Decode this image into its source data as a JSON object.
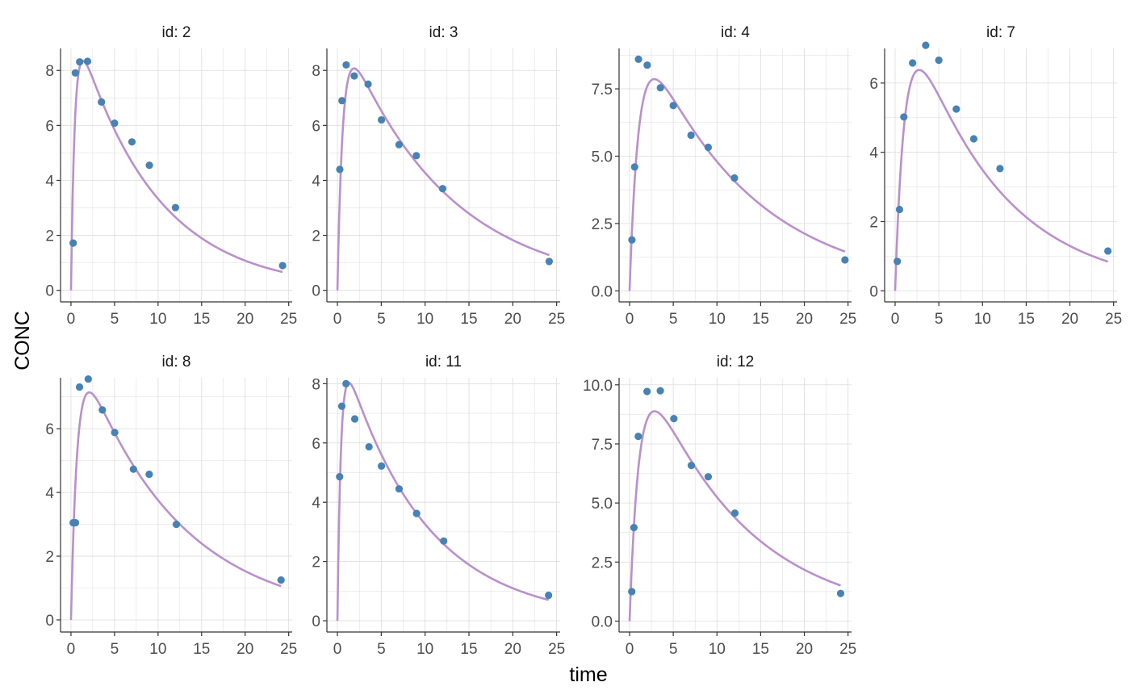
{
  "chart_data": {
    "type": "scatter",
    "xlabel": "time",
    "ylabel": "CONC",
    "grid": true,
    "colors": {
      "points": "#4682B4",
      "fit": "#BB8FCE",
      "grid": "#DCDCDC",
      "axis": "#333333"
    },
    "xlim": [
      -1.2,
      25.4
    ],
    "xticks": [
      0,
      5,
      10,
      15,
      20,
      25
    ],
    "panels": [
      {
        "strip": "id: 2",
        "ylim": [
          -0.42,
          8.8
        ],
        "yticks": [
          {
            "v": 0,
            "label": "0"
          },
          {
            "v": 2,
            "label": "2"
          },
          {
            "v": 4,
            "label": "4"
          },
          {
            "v": 6,
            "label": "6"
          },
          {
            "v": 8,
            "label": "8"
          }
        ],
        "points": [
          [
            0.25,
            1.72
          ],
          [
            0.5,
            7.91
          ],
          [
            1.0,
            8.31
          ],
          [
            1.9,
            8.33
          ],
          [
            3.5,
            6.85
          ],
          [
            5.0,
            6.08
          ],
          [
            7.0,
            5.4
          ],
          [
            9.0,
            4.55
          ],
          [
            12.0,
            3.01
          ],
          [
            24.3,
            0.9
          ]
        ],
        "model": {
          "ka": 2.3,
          "ke": 0.1125,
          "A": 10.25
        }
      },
      {
        "strip": "id: 3",
        "ylim": [
          -0.42,
          8.8
        ],
        "yticks": [
          {
            "v": 0,
            "label": "0"
          },
          {
            "v": 2,
            "label": "2"
          },
          {
            "v": 4,
            "label": "4"
          },
          {
            "v": 6,
            "label": "6"
          },
          {
            "v": 8,
            "label": "8"
          }
        ],
        "points": [
          [
            0.27,
            4.4
          ],
          [
            0.52,
            6.9
          ],
          [
            1.0,
            8.2
          ],
          [
            1.92,
            7.8
          ],
          [
            3.5,
            7.5
          ],
          [
            5.02,
            6.2
          ],
          [
            7.03,
            5.3
          ],
          [
            9.0,
            4.9
          ],
          [
            12.0,
            3.7
          ],
          [
            24.15,
            1.05
          ]
        ],
        "model": {
          "ka": 1.65,
          "ke": 0.085,
          "A": 10.0
        }
      },
      {
        "strip": "id: 4",
        "ylim": [
          -0.41,
          9.0
        ],
        "yticks": [
          {
            "v": 0,
            "label": "0.0"
          },
          {
            "v": 2.5,
            "label": "2.5"
          },
          {
            "v": 5,
            "label": "5.0"
          },
          {
            "v": 7.5,
            "label": "7.5"
          }
        ],
        "points": [
          [
            0.27,
            1.89
          ],
          [
            0.58,
            4.6
          ],
          [
            1.02,
            8.6
          ],
          [
            2.02,
            8.38
          ],
          [
            3.53,
            7.54
          ],
          [
            5.0,
            6.88
          ],
          [
            7.03,
            5.78
          ],
          [
            9.0,
            5.33
          ],
          [
            12.0,
            4.19
          ],
          [
            24.65,
            1.15
          ]
        ],
        "model": {
          "ka": 0.95,
          "ke": 0.0813,
          "A": 10.82
        }
      },
      {
        "strip": "id: 7",
        "ylim": [
          -0.32,
          7.0
        ],
        "yticks": [
          {
            "v": 0,
            "label": "0"
          },
          {
            "v": 2,
            "label": "2"
          },
          {
            "v": 4,
            "label": "4"
          },
          {
            "v": 6,
            "label": "6"
          }
        ],
        "points": [
          [
            0.25,
            0.85
          ],
          [
            0.5,
            2.35
          ],
          [
            1.0,
            5.02
          ],
          [
            2.0,
            6.58
          ],
          [
            3.5,
            7.09
          ],
          [
            5.0,
            6.66
          ],
          [
            7.0,
            5.25
          ],
          [
            9.0,
            4.39
          ],
          [
            12.0,
            3.53
          ],
          [
            24.35,
            1.15
          ]
        ],
        "model": {
          "ka": 0.9,
          "ke": 0.0992,
          "A": 9.42
        }
      },
      {
        "strip": "id: 8",
        "ylim": [
          -0.38,
          7.6
        ],
        "yticks": [
          {
            "v": 0,
            "label": "0"
          },
          {
            "v": 2,
            "label": "2"
          },
          {
            "v": 4,
            "label": "4"
          },
          {
            "v": 6,
            "label": "6"
          }
        ],
        "points": [
          [
            0.25,
            3.05
          ],
          [
            0.52,
            3.05
          ],
          [
            0.98,
            7.31
          ],
          [
            1.98,
            7.56
          ],
          [
            3.6,
            6.59
          ],
          [
            5.02,
            5.88
          ],
          [
            7.17,
            4.73
          ],
          [
            8.98,
            4.57
          ],
          [
            12.1,
            3.0
          ],
          [
            24.12,
            1.25
          ]
        ],
        "model": {
          "ka": 1.4,
          "ke": 0.0897,
          "A": 9.21
        }
      },
      {
        "strip": "id: 11",
        "ylim": [
          -0.38,
          8.2
        ],
        "yticks": [
          {
            "v": 0,
            "label": "0"
          },
          {
            "v": 2,
            "label": "2"
          },
          {
            "v": 4,
            "label": "4"
          },
          {
            "v": 6,
            "label": "6"
          },
          {
            "v": 8,
            "label": "8"
          }
        ],
        "points": [
          [
            0.25,
            4.86
          ],
          [
            0.5,
            7.24
          ],
          [
            0.98,
            8.0
          ],
          [
            1.98,
            6.81
          ],
          [
            3.6,
            5.87
          ],
          [
            5.02,
            5.22
          ],
          [
            7.03,
            4.45
          ],
          [
            9.03,
            3.62
          ],
          [
            12.12,
            2.69
          ],
          [
            24.08,
            0.86
          ]
        ],
        "model": {
          "ka": 2.5,
          "ke": 0.1089,
          "A": 9.68
        }
      },
      {
        "strip": "id: 12",
        "ylim": [
          -0.46,
          10.3
        ],
        "yticks": [
          {
            "v": 0,
            "label": "0.0"
          },
          {
            "v": 2.5,
            "label": "2.5"
          },
          {
            "v": 5,
            "label": "5.0"
          },
          {
            "v": 7.5,
            "label": "7.5"
          },
          {
            "v": 10,
            "label": "10.0"
          }
        ],
        "points": [
          [
            0.25,
            1.25
          ],
          [
            0.5,
            3.96
          ],
          [
            1.0,
            7.82
          ],
          [
            2.0,
            9.72
          ],
          [
            3.52,
            9.75
          ],
          [
            5.07,
            8.57
          ],
          [
            7.07,
            6.59
          ],
          [
            9.0,
            6.11
          ],
          [
            12.05,
            4.57
          ],
          [
            24.15,
            1.17
          ]
        ],
        "model": {
          "ka": 0.9,
          "ke": 0.0881,
          "A": 12.67
        }
      }
    ]
  }
}
